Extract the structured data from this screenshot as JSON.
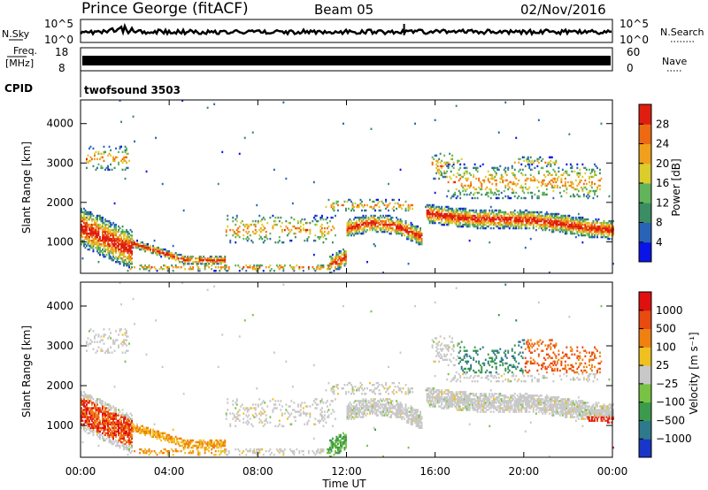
{
  "header": {
    "station": "Prince George (fitACF)",
    "beam": "Beam 05",
    "date": "02/Nov/2016"
  },
  "top_panels": {
    "sky_label": "N.Sky",
    "sky_ticks": [
      "10^5",
      "10^0"
    ],
    "search_label": "N.Search",
    "search_ticks": [
      "10^5",
      "10^0"
    ],
    "freq_label_line1": "Freq.",
    "freq_label_line2": "[MHz]",
    "freq_ticks": [
      "18",
      "8"
    ],
    "nave_label": "Nave",
    "nave_ticks": [
      "60",
      "0"
    ],
    "cpid_label": "CPID",
    "cpid_value": "twofsound 3503"
  },
  "chart_data": [
    {
      "type": "heatmap",
      "title": "",
      "xlabel": "",
      "ylabel": "Slant Range [km]",
      "ylim": [
        200,
        4600
      ],
      "y_ticks": [
        1000,
        2000,
        3000,
        4000
      ],
      "colorbar": {
        "label": "Power [dB]",
        "ticks": [
          "4",
          "8",
          "12",
          "16",
          "20",
          "24",
          "28"
        ],
        "colors": [
          "#0a14e6",
          "#2a62b8",
          "#3c8c64",
          "#62b45a",
          "#dccc2c",
          "#f0a01c",
          "#ee6a12",
          "#e01e10"
        ]
      },
      "echo_regions": [
        {
          "t_start": "00:00",
          "t_end": "02:30",
          "range_km": [
            500,
            3500
          ]
        },
        {
          "t_start": "02:30",
          "t_end": "06:30",
          "range_km": [
            300,
            900
          ]
        },
        {
          "t_start": "06:30",
          "t_end": "11:30",
          "range_km": [
            300,
            2800
          ]
        },
        {
          "t_start": "11:30",
          "t_end": "15:30",
          "range_km": [
            300,
            2200
          ]
        },
        {
          "t_start": "15:30",
          "t_end": "24:00",
          "range_km": [
            500,
            3400
          ]
        }
      ]
    },
    {
      "type": "heatmap",
      "title": "",
      "xlabel": "Time UT",
      "ylabel": "Slant Range [km]",
      "ylim": [
        200,
        4600
      ],
      "y_ticks": [
        1000,
        2000,
        3000,
        4000
      ],
      "x_ticks": [
        "00:00",
        "04:00",
        "08:00",
        "12:00",
        "16:00",
        "20:00",
        "00:00"
      ],
      "colorbar": {
        "label": "Velocity [m s⁻¹]",
        "ticks": [
          "1000",
          "500",
          "100",
          "25",
          "−25",
          "−100",
          "−500",
          "−1000"
        ],
        "colors": [
          "#1a36c8",
          "#2e7a8c",
          "#3c9a4c",
          "#78c244",
          "#c8c8c8",
          "#f0c020",
          "#f08010",
          "#e84a10",
          "#e01010"
        ]
      }
    }
  ]
}
